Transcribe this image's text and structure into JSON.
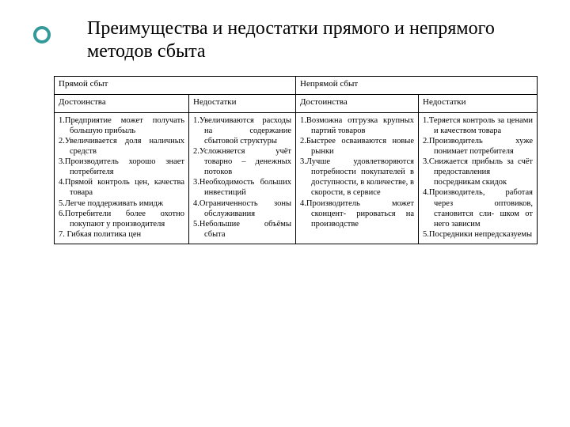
{
  "title": "Преимущества и недостатки прямого и непрямого методов сбыта",
  "header": {
    "direct": "Прямой сбыт",
    "indirect": "Непрямой сбыт",
    "pros": "Достоинства",
    "cons": "Недостатки"
  },
  "direct_pros": [
    "1.Предприятие может получать большую прибыль",
    "2.Увеличивается доля наличных средств",
    "3.Производитель хорошо знает потребителя",
    "4.Прямой контроль цен, качества товара",
    "5.Легче поддерживать имидж",
    "6.Потребители более охотно покупают у производителя",
    "7. Гибкая политика цен"
  ],
  "direct_cons": [
    "1.Увеличиваются расходы на содержание сбытовой структуры",
    "2.Усложняется учёт товарно – денежных потоков",
    "3.Необходимость больших инвестиций",
    "4.Ограниченность зоны обслуживания",
    "5.Небольшие объёмы сбыта"
  ],
  "indirect_pros": [
    "1.Возможна отгрузка крупных партий товаров",
    "2.Быстрее осваиваются новые рынки",
    "3.Лучше удовлетворяются потребности покупателей в доступности, в количестве, в скорости, в сервисе",
    "4.Производитель может сконцент- рироваться на производстве"
  ],
  "indirect_cons": [
    "1.Теряется контроль за ценами и качеством товара",
    "2.Производитель хуже понимает потребителя",
    "3.Снижается прибыль за счёт предоставления посредникам скидок",
    "4.Производитель, работая через оптовиков, становится сли- шком от него зависим",
    "5.Посредники непредсказуемы"
  ],
  "colors": {
    "accent": "#339999",
    "border": "#000000",
    "bg": "#ffffff",
    "text": "#000000"
  }
}
